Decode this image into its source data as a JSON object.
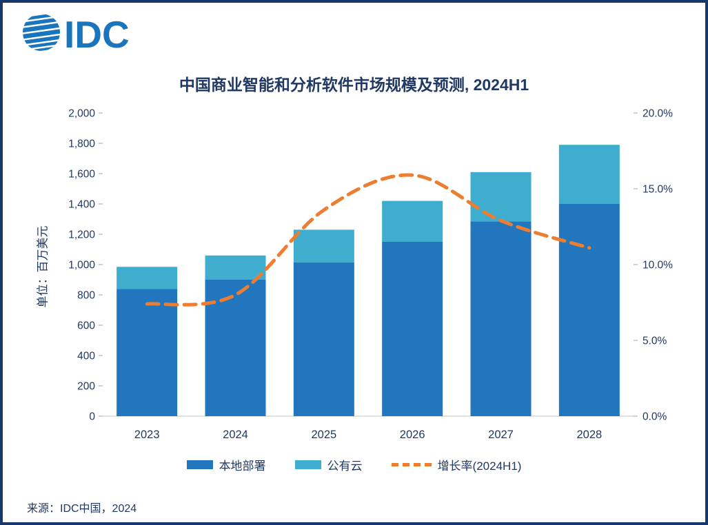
{
  "header": {
    "logo_text": "IDC"
  },
  "chart_data": {
    "type": "bar",
    "subtype": "stacked-bar-with-line",
    "title": "中国商业智能和分析软件市场规模及预测, 2024H1",
    "ylabel": "单位：百万美元",
    "y2label": "",
    "categories": [
      "2023",
      "2024",
      "2025",
      "2026",
      "2027",
      "2028"
    ],
    "series": [
      {
        "name": "本地部署",
        "type": "bar",
        "stacked": true,
        "color": "#2176BD",
        "axis": "left",
        "values": [
          840,
          900,
          1015,
          1150,
          1285,
          1400
        ]
      },
      {
        "name": "公有云",
        "type": "bar",
        "stacked": true,
        "color": "#3FAECE",
        "axis": "left",
        "values": [
          145,
          160,
          215,
          270,
          325,
          390
        ]
      },
      {
        "name": "增长率(2024H1)",
        "type": "line",
        "style": "dashed",
        "color": "#ED7D31",
        "axis": "right",
        "values": [
          7.4,
          8.0,
          13.6,
          15.9,
          12.9,
          11.1
        ]
      }
    ],
    "ylim": [
      0,
      2000
    ],
    "y2lim": [
      0,
      20
    ],
    "y_ticks": [
      {
        "value": 0,
        "label": "0"
      },
      {
        "value": 200,
        "label": "200"
      },
      {
        "value": 400,
        "label": "400"
      },
      {
        "value": 600,
        "label": "600"
      },
      {
        "value": 800,
        "label": "800"
      },
      {
        "value": 1000,
        "label": "1,000"
      },
      {
        "value": 1200,
        "label": "1,200"
      },
      {
        "value": 1400,
        "label": "1,400"
      },
      {
        "value": 1600,
        "label": "1,600"
      },
      {
        "value": 1800,
        "label": "1,800"
      },
      {
        "value": 2000,
        "label": "2,000"
      }
    ],
    "y2_ticks": [
      {
        "value": 0,
        "label": "0.0%"
      },
      {
        "value": 5,
        "label": "5.0%"
      },
      {
        "value": 10,
        "label": "10.0%"
      },
      {
        "value": 15,
        "label": "15.0%"
      },
      {
        "value": 20,
        "label": "20.0%"
      }
    ],
    "grid": false,
    "legend_position": "bottom"
  },
  "footer": {
    "source": "来源：IDC中国，2024"
  },
  "colors": {
    "text": "#1F3864",
    "axis_line": "#BFBFBF",
    "tick_mark": "#A6A6A6",
    "border": "#17386B",
    "logo": "#1B75BC"
  }
}
